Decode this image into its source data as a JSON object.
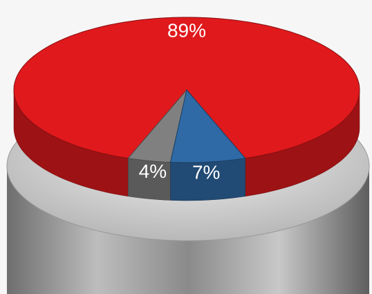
{
  "chart_data": {
    "type": "pie",
    "values": [
      89,
      4,
      7
    ],
    "value_labels": [
      "89%",
      "4%",
      "7%"
    ],
    "colors": [
      "#e0191c",
      "#808080",
      "#2f6aa6"
    ]
  }
}
